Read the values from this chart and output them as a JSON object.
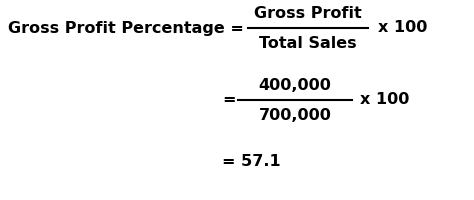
{
  "background_color": "#ffffff",
  "line1_left": "Gross Profit Percentage = ",
  "line1_numerator": "Gross Profit",
  "line1_denominator": "Total Sales",
  "line1_right": "x 100",
  "line2_eq": "=",
  "line2_numerator": "400,000",
  "line2_denominator": "700,000",
  "line2_right": "x 100",
  "line3": "= 57.1",
  "font_size_main": 11.5,
  "text_color": "#000000",
  "underline_color": "#000000",
  "fig_width": 4.74,
  "fig_height": 2.0,
  "dpi": 100
}
